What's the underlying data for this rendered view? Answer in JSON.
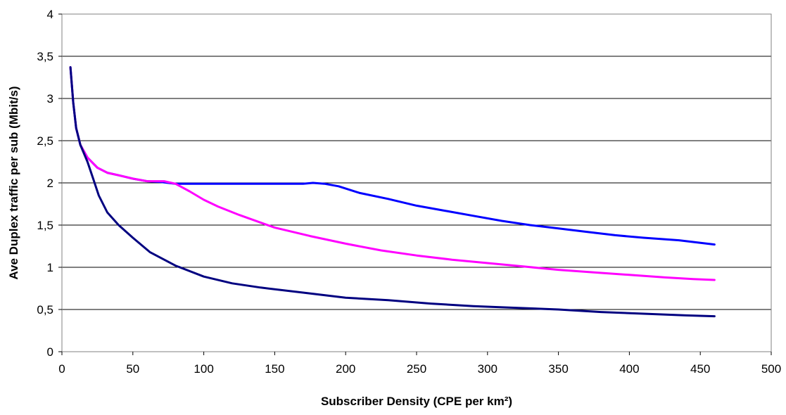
{
  "chart_data": {
    "type": "line",
    "title": "",
    "xlabel": "Subscriber Density (CPE per km²)",
    "ylabel": "Ave Duplex traffic per sub (Mbit/s)",
    "xlim": [
      0,
      500
    ],
    "ylim": [
      0,
      4
    ],
    "xticks": [
      0,
      50,
      100,
      150,
      200,
      250,
      300,
      350,
      400,
      450,
      500
    ],
    "yticks": [
      0,
      0.5,
      1,
      1.5,
      2,
      2.5,
      3,
      3.5,
      4
    ],
    "xtick_labels": [
      "0",
      "50",
      "100",
      "150",
      "200",
      "250",
      "300",
      "350",
      "400",
      "450",
      "500"
    ],
    "ytick_labels": [
      "0",
      "0,5",
      "1",
      "1,5",
      "2",
      "2,5",
      "3",
      "3,5",
      "4"
    ],
    "grid": "horizontal",
    "legend": "none",
    "series": [
      {
        "color": "#0000ff",
        "x": [
          6,
          8,
          10,
          13,
          18,
          25,
          32,
          40,
          50,
          60,
          70,
          80,
          100,
          120,
          140,
          160,
          170,
          177,
          185,
          195,
          210,
          230,
          250,
          270,
          290,
          310,
          330,
          350,
          370,
          390,
          410,
          435,
          460
        ],
        "y": [
          3.37,
          2.95,
          2.65,
          2.45,
          2.3,
          2.18,
          2.12,
          2.09,
          2.05,
          2.02,
          2.01,
          1.99,
          1.99,
          1.99,
          1.99,
          1.99,
          1.99,
          2.0,
          1.99,
          1.96,
          1.88,
          1.81,
          1.73,
          1.67,
          1.61,
          1.55,
          1.5,
          1.46,
          1.42,
          1.38,
          1.35,
          1.32,
          1.27
        ]
      },
      {
        "color": "#ff00ff",
        "x": [
          6,
          8,
          10,
          13,
          18,
          25,
          32,
          40,
          50,
          60,
          72,
          80,
          90,
          100,
          110,
          125,
          150,
          175,
          200,
          225,
          250,
          275,
          300,
          325,
          350,
          375,
          400,
          425,
          445,
          460
        ],
        "y": [
          3.37,
          2.95,
          2.65,
          2.45,
          2.3,
          2.18,
          2.12,
          2.09,
          2.05,
          2.02,
          2.02,
          1.99,
          1.9,
          1.8,
          1.72,
          1.62,
          1.47,
          1.37,
          1.28,
          1.2,
          1.14,
          1.09,
          1.05,
          1.01,
          0.97,
          0.94,
          0.91,
          0.88,
          0.86,
          0.85
        ]
      },
      {
        "color": "#000080",
        "x": [
          6,
          8,
          10,
          13,
          18,
          22,
          26,
          32,
          40,
          50,
          62,
          80,
          100,
          120,
          140,
          170,
          200,
          230,
          260,
          290,
          320,
          350,
          380,
          410,
          440,
          460
        ],
        "y": [
          3.37,
          2.95,
          2.65,
          2.45,
          2.25,
          2.05,
          1.85,
          1.65,
          1.5,
          1.35,
          1.18,
          1.02,
          0.89,
          0.81,
          0.76,
          0.7,
          0.64,
          0.61,
          0.57,
          0.54,
          0.52,
          0.5,
          0.47,
          0.45,
          0.43,
          0.42
        ]
      }
    ]
  }
}
